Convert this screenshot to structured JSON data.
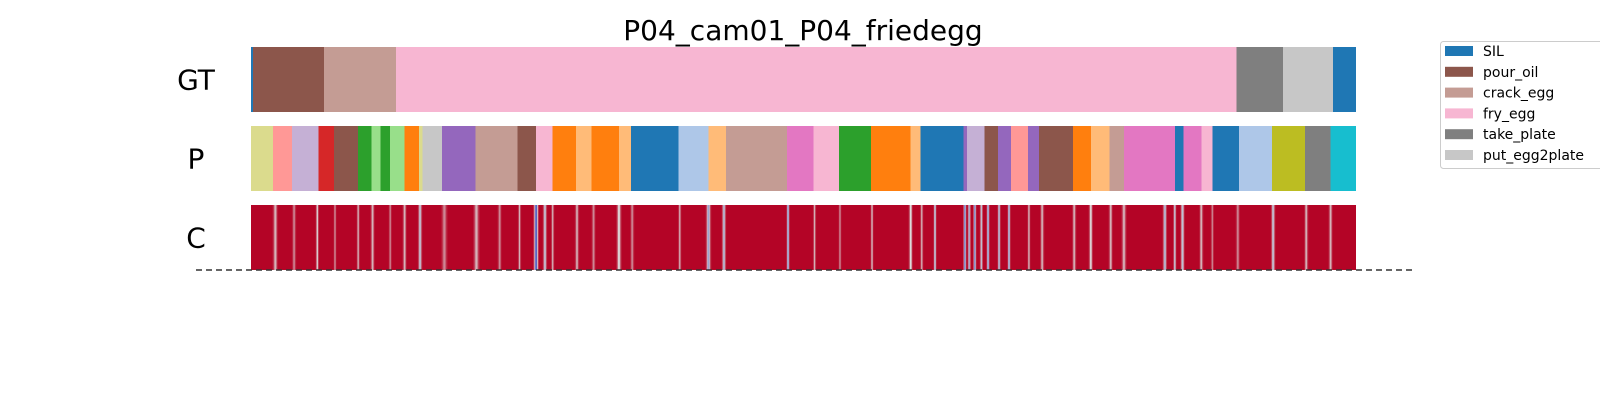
{
  "chart_data": {
    "type": "heatmap",
    "title": "P04_cam01_P04_friedegg",
    "x_range": [
      0,
      1000
    ],
    "rows": [
      {
        "label": "GT",
        "kind": "segments",
        "segments": [
          {
            "start": 0,
            "end": 2,
            "color": "#1f77b4"
          },
          {
            "start": 2,
            "end": 66,
            "color": "#8c564b"
          },
          {
            "start": 66,
            "end": 131,
            "color": "#c49c94"
          },
          {
            "start": 131,
            "end": 892,
            "color": "#f7b6d2"
          },
          {
            "start": 892,
            "end": 934,
            "color": "#7f7f7f"
          },
          {
            "start": 934,
            "end": 979,
            "color": "#c7c7c7"
          },
          {
            "start": 979,
            "end": 1000,
            "color": "#1f77b4"
          }
        ]
      },
      {
        "label": "P",
        "kind": "segments",
        "segments": [
          {
            "start": 0,
            "end": 20,
            "color": "#dbdb8d"
          },
          {
            "start": 20,
            "end": 37,
            "color": "#ff9896"
          },
          {
            "start": 37,
            "end": 61,
            "color": "#c5b0d5"
          },
          {
            "start": 61,
            "end": 75,
            "color": "#d62728"
          },
          {
            "start": 75,
            "end": 97,
            "color": "#8c564b"
          },
          {
            "start": 97,
            "end": 109,
            "color": "#2ca02c"
          },
          {
            "start": 109,
            "end": 117,
            "color": "#98df8a"
          },
          {
            "start": 117,
            "end": 126,
            "color": "#2ca02c"
          },
          {
            "start": 126,
            "end": 139,
            "color": "#98df8a"
          },
          {
            "start": 139,
            "end": 152,
            "color": "#ff7f0e"
          },
          {
            "start": 152,
            "end": 155,
            "color": "#dbdb8d"
          },
          {
            "start": 155,
            "end": 173,
            "color": "#c7c7c7"
          },
          {
            "start": 173,
            "end": 203,
            "color": "#9467bd"
          },
          {
            "start": 203,
            "end": 241,
            "color": "#c49c94"
          },
          {
            "start": 241,
            "end": 258,
            "color": "#8c564b"
          },
          {
            "start": 258,
            "end": 273,
            "color": "#f7b6d2"
          },
          {
            "start": 273,
            "end": 294,
            "color": "#ff7f0e"
          },
          {
            "start": 294,
            "end": 308,
            "color": "#ffbb78"
          },
          {
            "start": 308,
            "end": 333,
            "color": "#ff7f0e"
          },
          {
            "start": 333,
            "end": 344,
            "color": "#ffbb78"
          },
          {
            "start": 344,
            "end": 387,
            "color": "#1f77b4"
          },
          {
            "start": 387,
            "end": 414,
            "color": "#aec7e8"
          },
          {
            "start": 414,
            "end": 430,
            "color": "#ffbb78"
          },
          {
            "start": 430,
            "end": 485,
            "color": "#c49c94"
          },
          {
            "start": 485,
            "end": 509,
            "color": "#e377c2"
          },
          {
            "start": 509,
            "end": 532,
            "color": "#f7b6d2"
          },
          {
            "start": 532,
            "end": 561,
            "color": "#2ca02c"
          },
          {
            "start": 561,
            "end": 597,
            "color": "#ff7f0e"
          },
          {
            "start": 597,
            "end": 606,
            "color": "#ffbb78"
          },
          {
            "start": 606,
            "end": 645,
            "color": "#1f77b4"
          },
          {
            "start": 645,
            "end": 648,
            "color": "#9467bd"
          },
          {
            "start": 648,
            "end": 664,
            "color": "#c5b0d5"
          },
          {
            "start": 664,
            "end": 676,
            "color": "#8c564b"
          },
          {
            "start": 676,
            "end": 688,
            "color": "#9467bd"
          },
          {
            "start": 688,
            "end": 703,
            "color": "#ff9896"
          },
          {
            "start": 703,
            "end": 713,
            "color": "#9467bd"
          },
          {
            "start": 713,
            "end": 744,
            "color": "#8c564b"
          },
          {
            "start": 744,
            "end": 760,
            "color": "#ff7f0e"
          },
          {
            "start": 760,
            "end": 777,
            "color": "#ffbb78"
          },
          {
            "start": 777,
            "end": 790,
            "color": "#c49c94"
          },
          {
            "start": 790,
            "end": 836,
            "color": "#e377c2"
          },
          {
            "start": 836,
            "end": 844,
            "color": "#1f77b4"
          },
          {
            "start": 844,
            "end": 860,
            "color": "#e377c2"
          },
          {
            "start": 860,
            "end": 870,
            "color": "#f7b6d2"
          },
          {
            "start": 870,
            "end": 894,
            "color": "#1f77b4"
          },
          {
            "start": 894,
            "end": 924,
            "color": "#aec7e8"
          },
          {
            "start": 924,
            "end": 954,
            "color": "#bcbd22"
          },
          {
            "start": 954,
            "end": 977,
            "color": "#7f7f7f"
          },
          {
            "start": 977,
            "end": 1000,
            "color": "#17becf"
          }
        ]
      },
      {
        "label": "C",
        "kind": "confidence",
        "base_color": "#b40426",
        "dips": [
          {
            "x": 22,
            "w": 5,
            "v": 0.6
          },
          {
            "x": 39,
            "w": 4,
            "v": 0.7
          },
          {
            "x": 60,
            "w": 3,
            "v": 0.5
          },
          {
            "x": 76,
            "w": 3,
            "v": 0.7
          },
          {
            "x": 97,
            "w": 3,
            "v": 0.6
          },
          {
            "x": 110,
            "w": 4,
            "v": 0.6
          },
          {
            "x": 126,
            "w": 3,
            "v": 0.7
          },
          {
            "x": 139,
            "w": 4,
            "v": 0.6
          },
          {
            "x": 153,
            "w": 4,
            "v": 0.4
          },
          {
            "x": 175,
            "w": 6,
            "v": 0.7
          },
          {
            "x": 204,
            "w": 6,
            "v": 0.6
          },
          {
            "x": 225,
            "w": 4,
            "v": 0.7
          },
          {
            "x": 243,
            "w": 3,
            "v": 0.6
          },
          {
            "x": 258,
            "w": 5,
            "v": 0.05
          },
          {
            "x": 266,
            "w": 4,
            "v": 0.4
          },
          {
            "x": 273,
            "w": 3,
            "v": 0.6
          },
          {
            "x": 295,
            "w": 4,
            "v": 0.6
          },
          {
            "x": 310,
            "w": 4,
            "v": 0.7
          },
          {
            "x": 333,
            "w": 5,
            "v": 0.5
          },
          {
            "x": 345,
            "w": 4,
            "v": 0.7
          },
          {
            "x": 388,
            "w": 3,
            "v": 0.6
          },
          {
            "x": 414,
            "w": 5,
            "v": 0.3
          },
          {
            "x": 428,
            "w": 4,
            "v": 0.35
          },
          {
            "x": 486,
            "w": 3,
            "v": 0.2
          },
          {
            "x": 510,
            "w": 3,
            "v": 0.6
          },
          {
            "x": 533,
            "w": 3,
            "v": 0.7
          },
          {
            "x": 562,
            "w": 3,
            "v": 0.6
          },
          {
            "x": 597,
            "w": 4,
            "v": 0.5
          },
          {
            "x": 607,
            "w": 3,
            "v": 0.6
          },
          {
            "x": 619,
            "w": 3,
            "v": 0.35
          },
          {
            "x": 646,
            "w": 3,
            "v": 0.1
          },
          {
            "x": 650,
            "w": 3,
            "v": 0.3
          },
          {
            "x": 655,
            "w": 3,
            "v": 0.15
          },
          {
            "x": 661,
            "w": 3,
            "v": 0.4
          },
          {
            "x": 667,
            "w": 3,
            "v": 0.2
          },
          {
            "x": 677,
            "w": 3,
            "v": 0.3
          },
          {
            "x": 686,
            "w": 3,
            "v": 0.25
          },
          {
            "x": 704,
            "w": 3,
            "v": 0.6
          },
          {
            "x": 716,
            "w": 4,
            "v": 0.6
          },
          {
            "x": 745,
            "w": 4,
            "v": 0.6
          },
          {
            "x": 760,
            "w": 4,
            "v": 0.5
          },
          {
            "x": 778,
            "w": 4,
            "v": 0.6
          },
          {
            "x": 790,
            "w": 5,
            "v": 0.6
          },
          {
            "x": 827,
            "w": 4,
            "v": 0.35
          },
          {
            "x": 836,
            "w": 3,
            "v": 0.4
          },
          {
            "x": 843,
            "w": 4,
            "v": 0.4
          },
          {
            "x": 860,
            "w": 4,
            "v": 0.6
          },
          {
            "x": 870,
            "w": 3,
            "v": 0.7
          },
          {
            "x": 893,
            "w": 4,
            "v": 0.7
          },
          {
            "x": 925,
            "w": 4,
            "v": 0.4
          },
          {
            "x": 955,
            "w": 4,
            "v": 0.6
          },
          {
            "x": 977,
            "w": 4,
            "v": 0.6
          }
        ]
      }
    ],
    "legend": {
      "placement": "top-right",
      "entries": [
        {
          "label": "SIL",
          "color": "#1f77b4"
        },
        {
          "label": "pour_oil",
          "color": "#8c564b"
        },
        {
          "label": "crack_egg",
          "color": "#c49c94"
        },
        {
          "label": "fry_egg",
          "color": "#f7b6d2"
        },
        {
          "label": "take_plate",
          "color": "#7f7f7f"
        },
        {
          "label": "put_egg2plate",
          "color": "#c7c7c7"
        }
      ]
    }
  }
}
